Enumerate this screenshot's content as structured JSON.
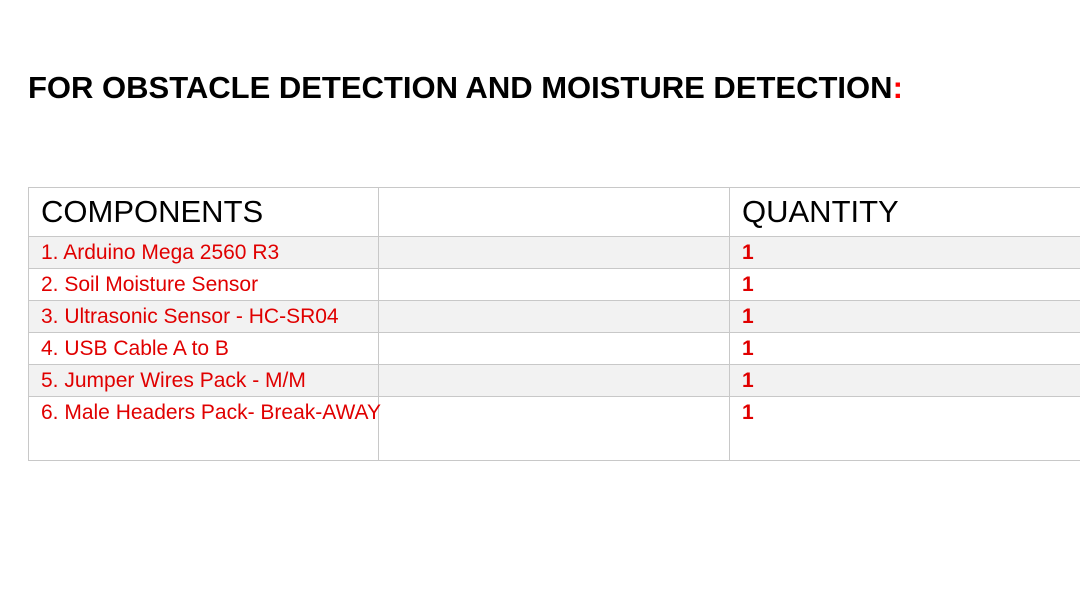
{
  "heading": {
    "text": "FOR OBSTACLE DETECTION AND MOISTURE DETECTION",
    "colon": ":"
  },
  "table": {
    "headers": [
      "COMPONENTS",
      "",
      "QUANTITY"
    ],
    "rows": [
      {
        "component": "1. Arduino Mega 2560 R3",
        "quantity": "1"
      },
      {
        "component": "2. Soil Moisture Sensor",
        "quantity": "1"
      },
      {
        "component": "3. Ultrasonic Sensor - HC-SR04",
        "quantity": "1"
      },
      {
        "component": "4. USB Cable A to B",
        "quantity": "1"
      },
      {
        "component": "5. Jumper Wires Pack - M/M",
        "quantity": "1"
      },
      {
        "component": "6. Male Headers Pack- Break-AWAY",
        "quantity": "1"
      }
    ]
  },
  "colors": {
    "item_text": "#e00000",
    "accent_colon": "#ff0000",
    "shaded_row": "#f2f2f2",
    "border": "#c8c8c8"
  }
}
